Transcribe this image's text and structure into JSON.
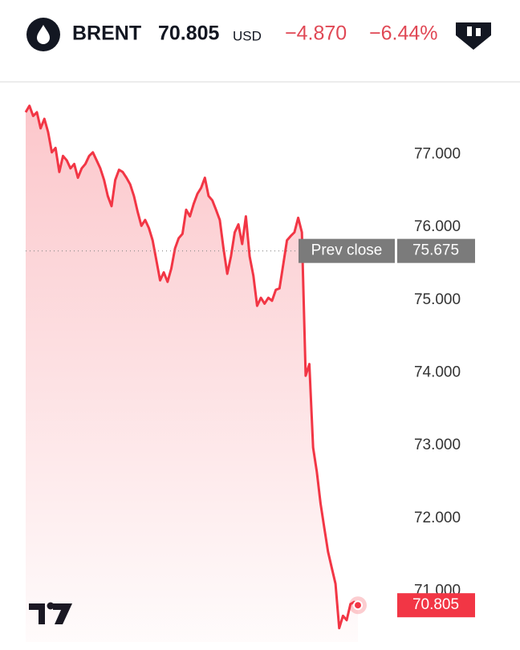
{
  "header": {
    "symbol": "BRENT",
    "price": 70.805,
    "currency": "USD",
    "change": "−4.870",
    "change_percent": "−6.44%"
  },
  "chart_data": {
    "type": "line",
    "color": "#f23645",
    "values": [
      77.58,
      77.67,
      77.53,
      77.58,
      77.36,
      77.49,
      77.31,
      77.03,
      77.09,
      76.76,
      76.98,
      76.92,
      76.81,
      76.87,
      76.68,
      76.81,
      76.87,
      76.98,
      77.03,
      76.92,
      76.81,
      76.65,
      76.43,
      76.29,
      76.65,
      76.79,
      76.76,
      76.68,
      76.59,
      76.43,
      76.21,
      76.02,
      76.1,
      75.99,
      75.82,
      75.55,
      75.27,
      75.38,
      75.25,
      75.43,
      75.71,
      75.85,
      75.91,
      76.24,
      76.15,
      76.32,
      76.46,
      76.54,
      76.68,
      76.43,
      76.37,
      76.24,
      76.1,
      75.71,
      75.36,
      75.6,
      75.93,
      76.04,
      75.77,
      76.15,
      75.6,
      75.33,
      74.92,
      75.03,
      74.95,
      75.03,
      74.99,
      75.14,
      75.16,
      75.49,
      75.82,
      75.88,
      75.93,
      76.13,
      75.93,
      73.96,
      74.12,
      72.97,
      72.64,
      72.2,
      71.87,
      71.54,
      71.32,
      71.1,
      70.49,
      70.66,
      70.6,
      70.82,
      70.85,
      70.805
    ],
    "ylim": [
      70.3,
      77.8
    ],
    "yticks": [
      {
        "value": 71,
        "label": "71.000"
      },
      {
        "value": 72,
        "label": "72.000"
      },
      {
        "value": 73,
        "label": "73.000"
      },
      {
        "value": 74,
        "label": "74.000"
      },
      {
        "value": 75,
        "label": "75.000"
      },
      {
        "value": 76,
        "label": "76.000"
      },
      {
        "value": 77,
        "label": "77.000"
      }
    ],
    "prev_close": {
      "label": "Prev close",
      "value": 75.675
    }
  }
}
